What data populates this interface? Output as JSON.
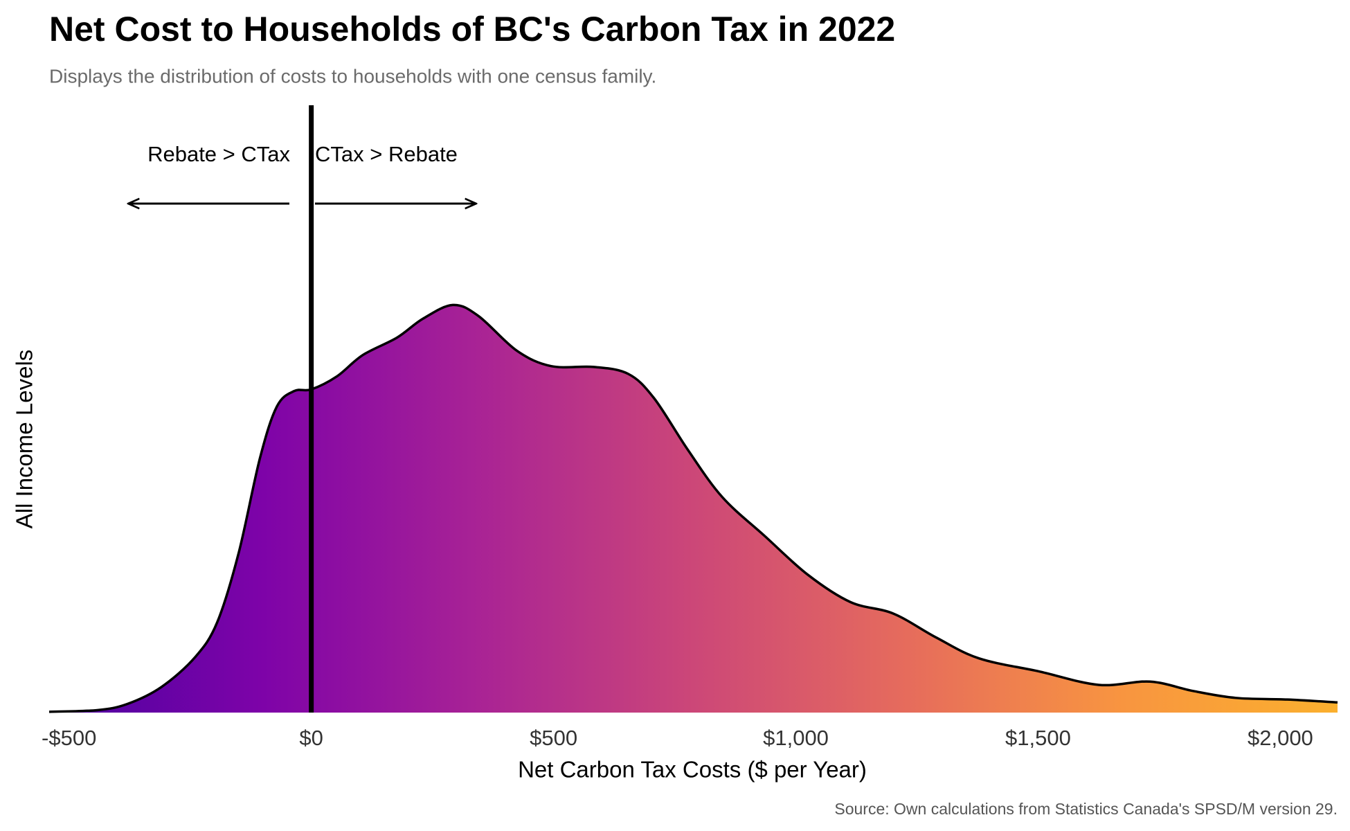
{
  "chart_data": {
    "type": "density",
    "title": "Net Cost to Households of BC's Carbon Tax in 2022",
    "subtitle": "Displays the distribution of costs to households with one census family.",
    "xlabel": "Net Carbon Tax Costs ($ per Year)",
    "ylabel": "All Income Levels",
    "caption": "Source: Own calculations from Statistics Canada's SPSD/M version 29.",
    "annotations": [
      "Rebate > CTax",
      "CTax > Rebate"
    ],
    "vline": 0,
    "x": [
      -541,
      -442,
      -380,
      -309,
      -239,
      -194,
      -150,
      -106,
      -71,
      -35,
      0,
      53,
      106,
      177,
      230,
      292,
      345,
      424,
      495,
      583,
      654,
      707,
      777,
      848,
      936,
      1025,
      1113,
      1201,
      1290,
      1378,
      1502,
      1625,
      1731,
      1820,
      1908,
      2014,
      2118
    ],
    "values": [
      0.002,
      0.006,
      0.021,
      0.063,
      0.137,
      0.222,
      0.391,
      0.624,
      0.751,
      0.789,
      0.793,
      0.825,
      0.877,
      0.92,
      0.966,
      1.0,
      0.973,
      0.888,
      0.85,
      0.848,
      0.831,
      0.772,
      0.645,
      0.529,
      0.433,
      0.338,
      0.271,
      0.243,
      0.184,
      0.133,
      0.101,
      0.068,
      0.076,
      0.053,
      0.036,
      0.032,
      0.025
    ],
    "colors": [
      "#4c02a1",
      "#7e03a8",
      "#a92395",
      "#cc4778",
      "#e66c5c",
      "#f89540",
      "#fbb02e"
    ],
    "xlim": [
      -541,
      2118
    ],
    "ylim": [
      0,
      1.49
    ],
    "xticks": [
      {
        "value": -500,
        "label": "-$500"
      },
      {
        "value": 0,
        "label": "$0"
      },
      {
        "value": 500,
        "label": "$500"
      },
      {
        "value": 1000,
        "label": "$1,000"
      },
      {
        "value": 1500,
        "label": "$1,500"
      },
      {
        "value": 2000,
        "label": "$2,000"
      }
    ]
  }
}
